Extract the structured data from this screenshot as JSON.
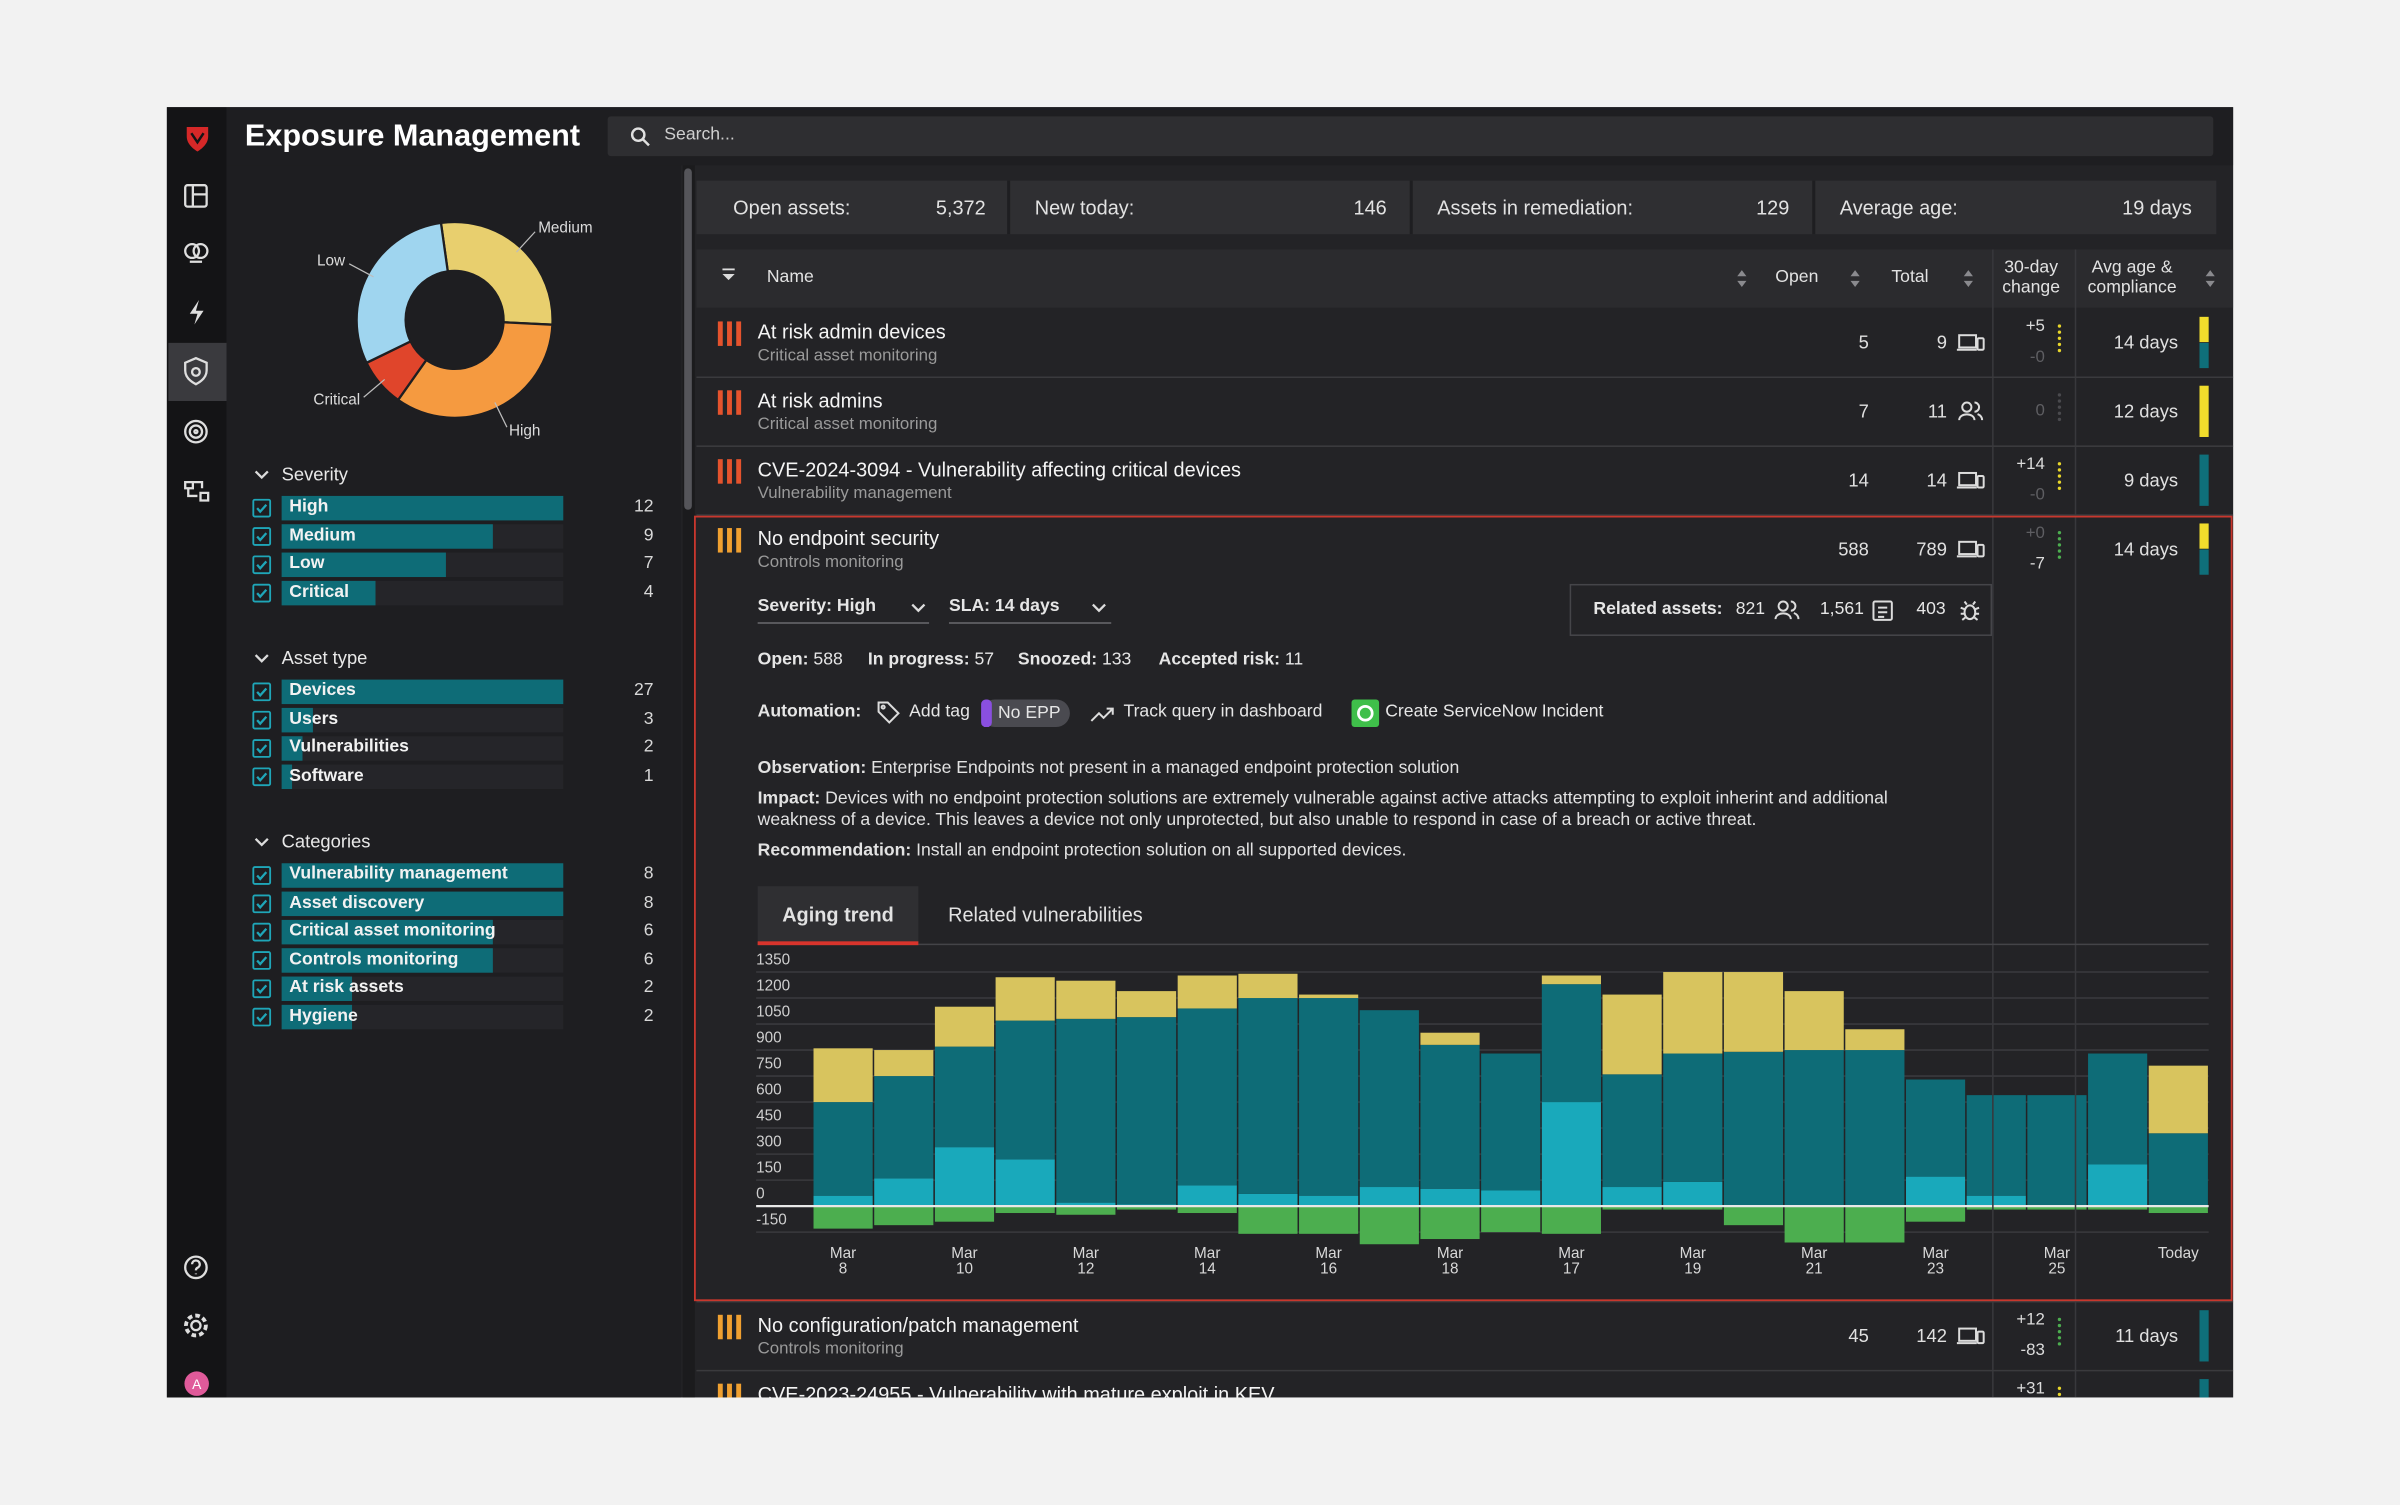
{
  "header": {
    "title": "Exposure Management",
    "search": "Search..."
  },
  "user": {
    "initial": "A"
  },
  "filter_bar_color": "#0e6c77",
  "filters": [
    {
      "title": "Severity",
      "items": [
        {
          "label": "High",
          "count": 12
        },
        {
          "label": "Medium",
          "count": 9
        },
        {
          "label": "Low",
          "count": 7
        },
        {
          "label": "Critical",
          "count": 4
        }
      ]
    },
    {
      "title": "Asset type",
      "items": [
        {
          "label": "Devices",
          "count": 27
        },
        {
          "label": "Users",
          "count": 3
        },
        {
          "label": "Vulnerabilities",
          "count": 2
        },
        {
          "label": "Software",
          "count": 1
        }
      ]
    },
    {
      "title": "Categories",
      "items": [
        {
          "label": "Vulnerability management",
          "count": 8
        },
        {
          "label": "Asset discovery",
          "count": 8
        },
        {
          "label": "Critical asset monitoring",
          "count": 6
        },
        {
          "label": "Controls monitoring",
          "count": 6
        },
        {
          "label": "At risk assets",
          "count": 2
        },
        {
          "label": "Hygiene",
          "count": 2
        }
      ]
    }
  ],
  "stats": [
    {
      "label": "Open assets:",
      "value": "5,372"
    },
    {
      "label": "New today:",
      "value": "146"
    },
    {
      "label": "Assets in remediation:",
      "value": "129"
    },
    {
      "label": "Average age:",
      "value": "19 days"
    }
  ],
  "table": {
    "columns": [
      "Name",
      "Open",
      "Total",
      "30-day change",
      "Avg age & compliance"
    ],
    "rows": [
      {
        "name": "At risk admin devices",
        "category": "Critical asset monitoring",
        "open": "5",
        "total": "9",
        "asset": "devices",
        "change_up": "+5",
        "change_down": "-0",
        "trend_color": "#e8d62a",
        "avg_age": "14 days",
        "severity_color": "#e5532d",
        "compliance": [
          "#f0dc2c",
          "#0f6f7a"
        ]
      },
      {
        "name": "At risk admins",
        "category": "Critical asset monitoring",
        "open": "7",
        "total": "11",
        "asset": "users",
        "change": "0",
        "trend_color": "#4a4a4e",
        "avg_age": "12 days",
        "severity_color": "#e5532d",
        "compliance": [
          "#f0dc2c"
        ]
      },
      {
        "name": "CVE-2024-3094 - Vulnerability affecting critical devices",
        "category": "Vulnerability management",
        "open": "14",
        "total": "14",
        "asset": "devices",
        "change_up": "+14",
        "change_down": "-0",
        "trend_color": "#e8d62a",
        "avg_age": "9 days",
        "severity_color": "#e5532d",
        "compliance": [
          "#0f6f7a"
        ]
      },
      {
        "name": "No endpoint security",
        "category": "Controls monitoring",
        "open": "588",
        "total": "789",
        "asset": "devices",
        "change_up": "+0",
        "change_down": "-7",
        "trend_color": "#4cae4f",
        "avg_age": "14 days",
        "severity_color": "#f0a030",
        "compliance": [
          "#f0dc2c",
          "#0f6f7a"
        ]
      },
      {
        "name": "No configuration/patch management",
        "category": "Controls monitoring",
        "open": "45",
        "total": "142",
        "asset": "devices",
        "change_up": "+12",
        "change_down": "-83",
        "trend_color": "#4cae4f",
        "avg_age": "11 days",
        "severity_color": "#f0a030",
        "compliance": [
          "#0f6f7a"
        ]
      },
      {
        "name": "CVE-2023-24955 - Vulnerability with mature exploit in KEV",
        "change_up": "+31",
        "trend_color": "#e8d62a",
        "severity_color": "#f0a030",
        "compliance": [
          "#0f6f7a"
        ]
      }
    ]
  },
  "details": {
    "severity": "Severity: High",
    "sla": "SLA: 14 days",
    "related_label": "Related assets:",
    "related": [
      "821",
      "1,561",
      "403"
    ],
    "status": [
      {
        "label": "Open:",
        "value": "588"
      },
      {
        "label": "In progress:",
        "value": "57"
      },
      {
        "label": "Snoozed:",
        "value": "133"
      },
      {
        "label": "Accepted risk:",
        "value": "11"
      }
    ],
    "automation_label": "Automation:",
    "actions": [
      "Add tag",
      "Track query in dashboard",
      "Create ServiceNow Incident"
    ],
    "tag": "No EPP",
    "notes": [
      {
        "label": "Observation:",
        "text": "Enterprise Endpoints not present in a managed endpoint protection solution"
      },
      {
        "label": "Impact:",
        "text": "Devices with no endpoint protection solutions are extremely vulnerable against active attacks attempting to exploit inherint and additional weakness of a device. This leaves a device not only unprotected, but also unable to respond in case of a breach or active threat."
      },
      {
        "label": "Recommendation:",
        "text": "Install an endpoint protection solution on all supported devices."
      }
    ],
    "tabs": [
      "Aging trend",
      "Related vulnerabilities"
    ]
  },
  "chart_data": [
    {
      "type": "pie",
      "categories": [
        "Medium",
        "High",
        "Critical",
        "Low"
      ],
      "values": [
        28,
        34,
        8,
        30
      ],
      "colors": [
        "#e8cf6e",
        "#f59a40",
        "#e0452b",
        "#9fd5ef"
      ]
    },
    {
      "type": "bar",
      "stacked": true,
      "categories": [
        "Mar 8",
        null,
        "Mar 10",
        null,
        "Mar 12",
        null,
        "Mar 14",
        null,
        "Mar 16",
        null,
        "Mar 18",
        null,
        "Mar 17",
        null,
        "Mar 19",
        null,
        "Mar 21",
        null,
        "Mar 23",
        null,
        "Mar 25",
        null,
        "Today"
      ],
      "series": [
        {
          "color": "#19a9bb",
          "values": [
            60,
            160,
            340,
            270,
            20,
            10,
            120,
            70,
            60,
            110,
            100,
            90,
            600,
            110,
            140,
            0,
            0,
            0,
            170,
            60,
            0,
            240,
            0
          ]
        },
        {
          "color": "#0e6c77",
          "values": [
            540,
            590,
            580,
            800,
            1060,
            1080,
            1020,
            1130,
            1140,
            1020,
            830,
            790,
            680,
            650,
            740,
            890,
            900,
            900,
            560,
            580,
            640,
            640,
            420
          ]
        },
        {
          "color": "#d8c45e",
          "values": [
            310,
            150,
            230,
            250,
            220,
            150,
            190,
            140,
            20,
            0,
            70,
            0,
            50,
            460,
            470,
            460,
            340,
            120,
            0,
            0,
            0,
            0,
            390
          ]
        },
        {
          "color": "#4cae4f",
          "values": [
            -130,
            -110,
            -90,
            -40,
            -50,
            -20,
            -40,
            -160,
            -160,
            -220,
            -190,
            -150,
            -160,
            -20,
            -20,
            -110,
            -210,
            -210,
            -90,
            -20,
            -20,
            -20,
            -40
          ]
        }
      ],
      "ylim": [
        -250,
        1400
      ],
      "yticks": [
        -150,
        0,
        150,
        300,
        450,
        600,
        750,
        900,
        1050,
        1200,
        1350
      ],
      "grid": true
    }
  ]
}
